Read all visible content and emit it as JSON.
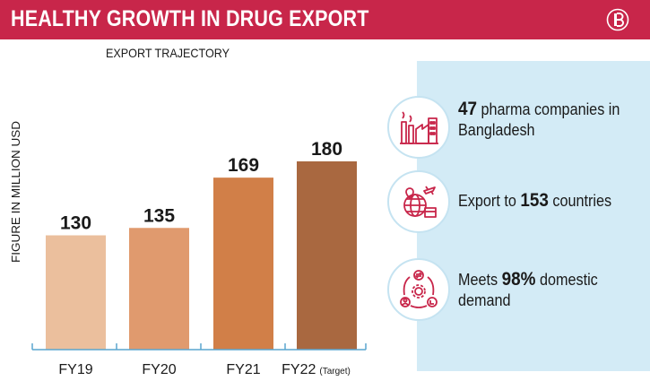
{
  "header": {
    "title": "HEALTHY GROWTH IN DRUG EXPORT",
    "logo_icon": "publisher-logo-icon"
  },
  "colors": {
    "header_bg": "#c8264a",
    "panel_bg": "#d3ebf6",
    "icon_stroke": "#c8264a",
    "axis": "#5aa6cf"
  },
  "chart_data": {
    "type": "bar",
    "title": "EXPORT TRAJECTORY",
    "ylabel": "FIGURE IN MILLION USD",
    "categories": [
      "FY19",
      "FY20",
      "FY21",
      "FY22"
    ],
    "category_notes": [
      "",
      "",
      "",
      "(Target)"
    ],
    "values": [
      130,
      135,
      169,
      180
    ],
    "bar_colors": [
      "#ebbf9d",
      "#e09a6e",
      "#d17f48",
      "#a96840"
    ],
    "ylim": [
      0,
      190
    ],
    "grid": false
  },
  "facts": [
    {
      "icon": "factory-icon",
      "prefix": "",
      "value": "47",
      "suffix": " pharma companies in Bangladesh"
    },
    {
      "icon": "globe-export-icon",
      "prefix": "Export to ",
      "value": "153",
      "suffix": " countries"
    },
    {
      "icon": "cycle-demand-icon",
      "prefix": "Meets ",
      "value": "98%",
      "suffix": " domestic demand"
    }
  ]
}
